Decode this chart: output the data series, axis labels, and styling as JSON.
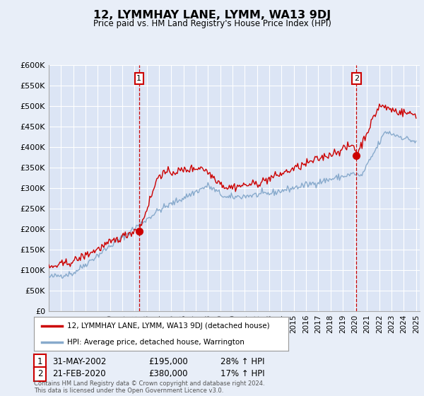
{
  "title": "12, LYMMHAY LANE, LYMM, WA13 9DJ",
  "subtitle": "Price paid vs. HM Land Registry's House Price Index (HPI)",
  "background_color": "#e8eef8",
  "plot_bg_color": "#dce5f5",
  "ylim": [
    0,
    600000
  ],
  "yticks": [
    0,
    50000,
    100000,
    150000,
    200000,
    250000,
    300000,
    350000,
    400000,
    450000,
    500000,
    550000,
    600000
  ],
  "ytick_labels": [
    "£0",
    "£50K",
    "£100K",
    "£150K",
    "£200K",
    "£250K",
    "£300K",
    "£350K",
    "£400K",
    "£450K",
    "£500K",
    "£550K",
    "£600K"
  ],
  "sale1_price": 195000,
  "sale1_label": "1",
  "sale1_date_str": "31-MAY-2002",
  "sale1_pct": "28% ↑ HPI",
  "sale1_x": 2002.375,
  "sale2_price": 380000,
  "sale2_label": "2",
  "sale2_date_str": "21-FEB-2020",
  "sale2_pct": "17% ↑ HPI",
  "sale2_x": 2020.125,
  "legend_line1": "12, LYMMHAY LANE, LYMM, WA13 9DJ (detached house)",
  "legend_line2": "HPI: Average price, detached house, Warrington",
  "footer": "Contains HM Land Registry data © Crown copyright and database right 2024.\nThis data is licensed under the Open Government Licence v3.0.",
  "red_line_color": "#cc0000",
  "blue_line_color": "#88aacc",
  "x_start_year": 1995,
  "x_end_year": 2025
}
